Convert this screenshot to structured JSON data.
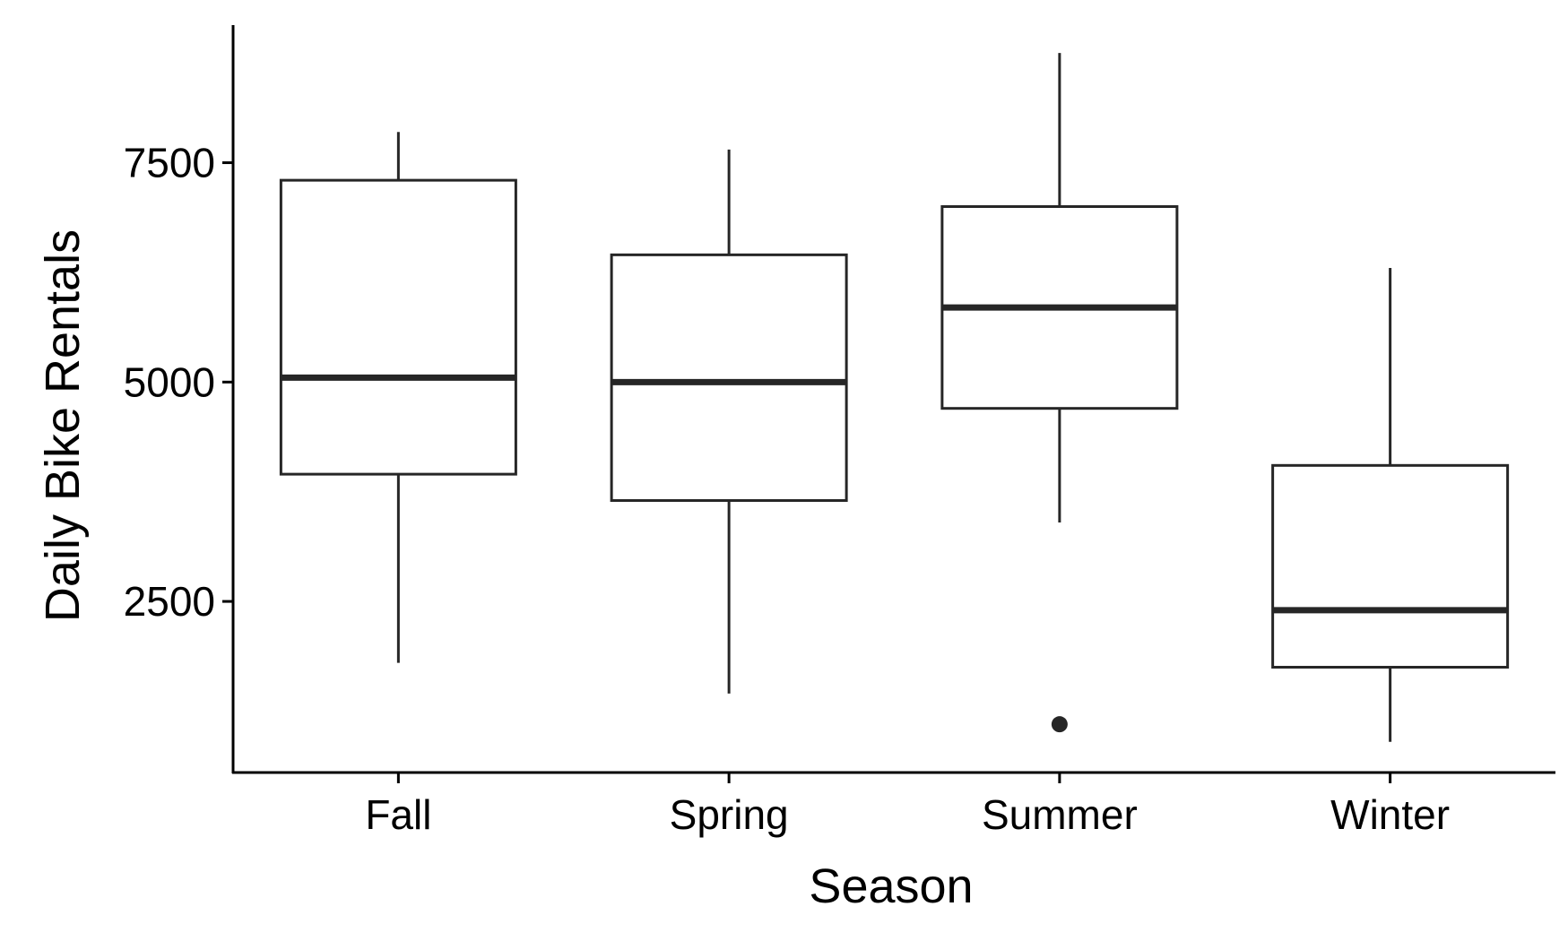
{
  "chart_data": {
    "type": "boxplot",
    "title": "",
    "xlabel": "Season",
    "ylabel": "Daily Bike Rentals",
    "categories": [
      "Fall",
      "Spring",
      "Summer",
      "Winter"
    ],
    "y_ticks": [
      2500,
      5000,
      7500
    ],
    "ylim": [
      550,
      9150
    ],
    "grid": false,
    "boxes": [
      {
        "category": "Fall",
        "whisker_low": 1800,
        "q1": 3950,
        "median": 5050,
        "q3": 7300,
        "whisker_high": 7850,
        "outliers": []
      },
      {
        "category": "Spring",
        "whisker_low": 1450,
        "q1": 3650,
        "median": 5000,
        "q3": 6450,
        "whisker_high": 7650,
        "outliers": []
      },
      {
        "category": "Summer",
        "whisker_low": 3400,
        "q1": 4700,
        "median": 5850,
        "q3": 7000,
        "whisker_high": 8750,
        "outliers": [
          1100
        ]
      },
      {
        "category": "Winter",
        "whisker_low": 900,
        "q1": 1750,
        "median": 2400,
        "q3": 4050,
        "whisker_high": 6300,
        "outliers": []
      }
    ],
    "colors": {
      "stroke": "#262626",
      "axis": "#000000",
      "fill": "#ffffff"
    }
  }
}
